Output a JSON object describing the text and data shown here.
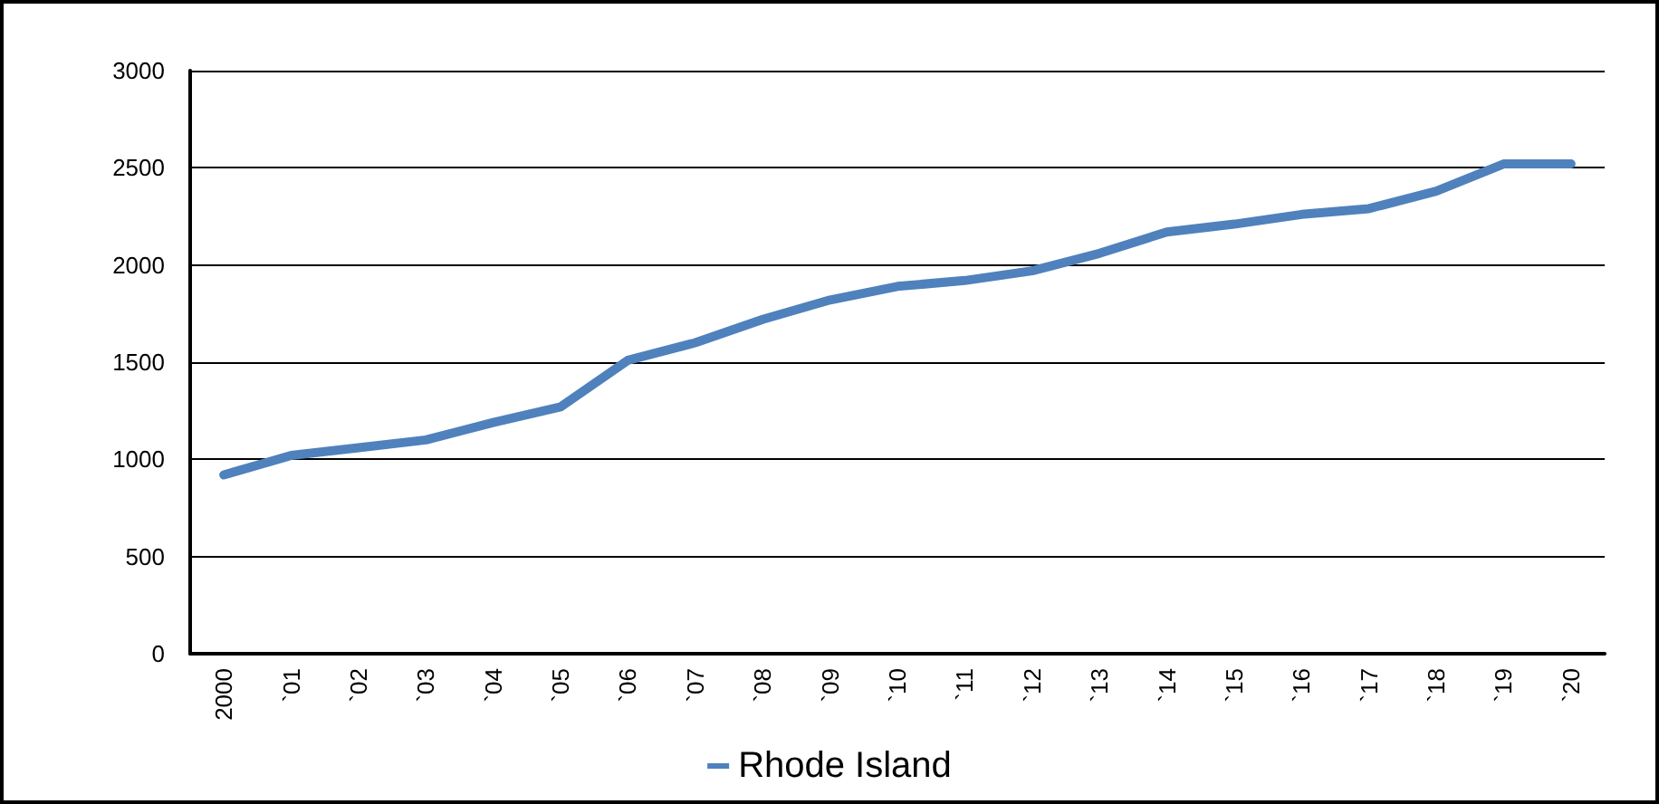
{
  "chart_data": {
    "type": "line",
    "categories": [
      "2000",
      "`01",
      "`02",
      "`03",
      "`04",
      "`05",
      "`06",
      "`07",
      "`08",
      "`09",
      "`10",
      "`11",
      "`12",
      "`13",
      "`14",
      "`15",
      "`16",
      "`17",
      "`18",
      "`19",
      "`20"
    ],
    "series": [
      {
        "name": "Rhode Island",
        "color": "#4f81bd",
        "values": [
          920,
          1020,
          1060,
          1100,
          1190,
          1270,
          1510,
          1600,
          1720,
          1820,
          1890,
          1920,
          1970,
          2060,
          2170,
          2210,
          2260,
          2290,
          2380,
          2520,
          2520
        ]
      }
    ],
    "ylim": [
      0,
      3000
    ],
    "yticks": [
      0,
      500,
      1000,
      1500,
      2000,
      2500,
      3000
    ],
    "grid": "y",
    "legend": "bottom",
    "marker": "none",
    "line_style": "solid"
  }
}
